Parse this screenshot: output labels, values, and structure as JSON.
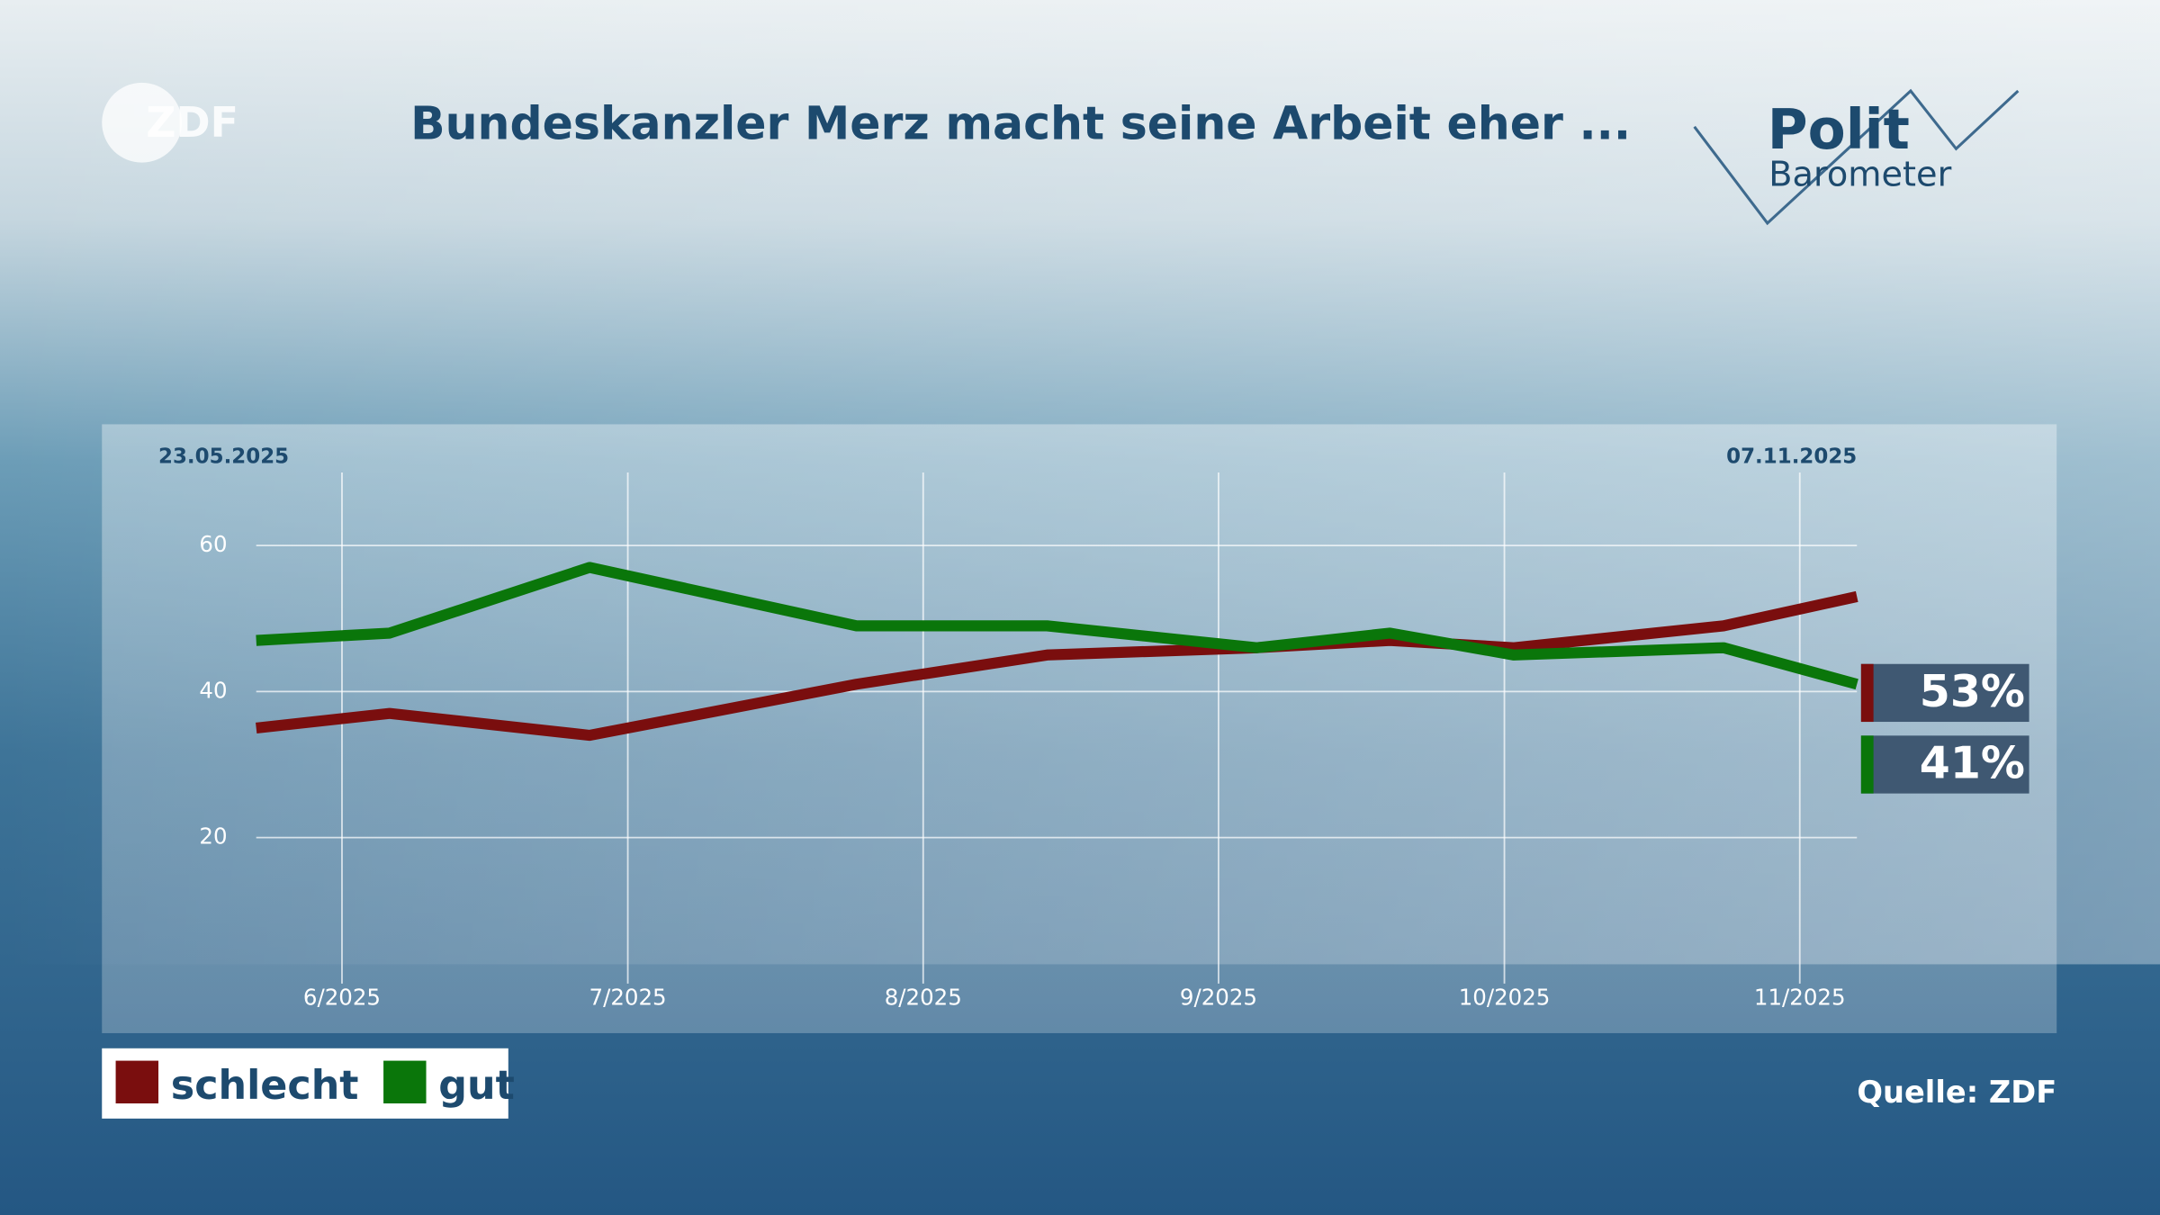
{
  "logo": "ZDF",
  "brand": {
    "line1": "Polit",
    "line2": "Barometer"
  },
  "source": "Quelle: ZDF",
  "chart_data": {
    "type": "line",
    "title": "Bundeskanzler Merz macht seine Arbeit eher ...",
    "x": [
      "23.05.2025",
      "06.06.2025",
      "27.06.2025",
      "25.07.2025",
      "14.08.2025",
      "05.09.2025",
      "19.09.2025",
      "02.10.2025",
      "24.10.2025",
      "07.11.2025"
    ],
    "series": [
      {
        "name": "schlecht",
        "color": "#7a0e0e",
        "values": [
          35,
          37,
          34,
          41,
          45,
          46,
          47,
          46,
          49,
          53
        ],
        "value_labels": [
          null,
          null,
          null,
          null,
          null,
          null,
          null,
          null,
          null,
          "53%"
        ]
      },
      {
        "name": "gut",
        "color": "#0a760a",
        "values": [
          47,
          48,
          57,
          49,
          49,
          46,
          48,
          45,
          46,
          41
        ],
        "value_labels": [
          null,
          null,
          null,
          null,
          null,
          null,
          null,
          null,
          null,
          "41%"
        ]
      }
    ],
    "xlim": [
      "23.05.2025",
      "07.11.2025"
    ],
    "xticks": [
      {
        "value": "01.06.2025",
        "label": "6/2025"
      },
      {
        "value": "01.07.2025",
        "label": "7/2025"
      },
      {
        "value": "01.08.2025",
        "label": "8/2025"
      },
      {
        "value": "01.09.2025",
        "label": "9/2025"
      },
      {
        "value": "01.10.2025",
        "label": "10/2025"
      },
      {
        "value": "01.11.2025",
        "label": "11/2025"
      }
    ],
    "ylim": [
      0,
      70
    ],
    "yticks": [
      20,
      40,
      60
    ],
    "grid": true
  }
}
